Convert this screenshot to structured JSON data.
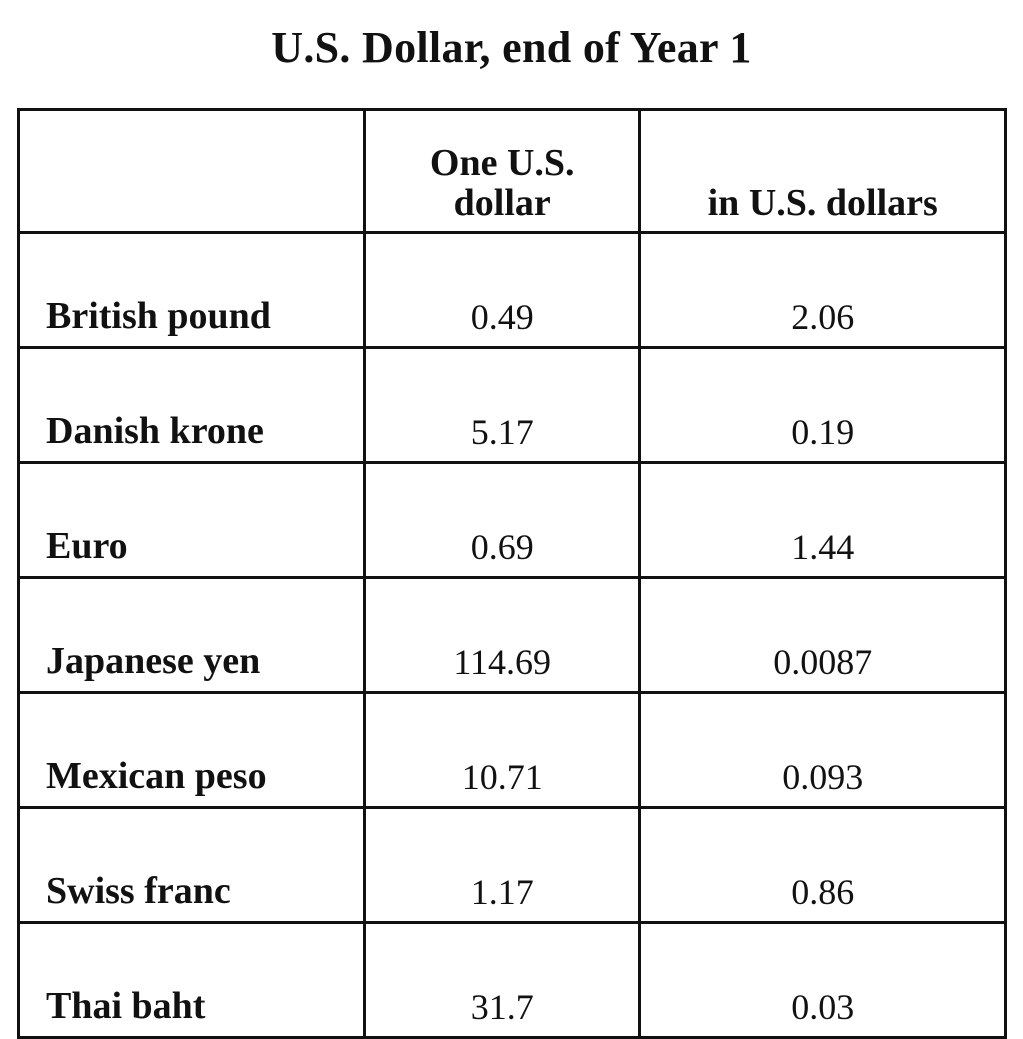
{
  "title": "U.S. Dollar, end of Year 1",
  "chart_data": {
    "type": "table",
    "title": "U.S. Dollar, end of Year 1",
    "columns": [
      "",
      "One U.S. dollar",
      "in U.S. dollars"
    ],
    "rows": [
      {
        "currency": "British pound",
        "per_usd": "0.49",
        "in_usd": "2.06"
      },
      {
        "currency": "Danish krone",
        "per_usd": "5.17",
        "in_usd": "0.19"
      },
      {
        "currency": "Euro",
        "per_usd": "0.69",
        "in_usd": "1.44"
      },
      {
        "currency": "Japanese yen",
        "per_usd": "114.69",
        "in_usd": "0.0087"
      },
      {
        "currency": "Mexican peso",
        "per_usd": "10.71",
        "in_usd": "0.093"
      },
      {
        "currency": "Swiss franc",
        "per_usd": "1.17",
        "in_usd": "0.86"
      },
      {
        "currency": "Thai baht",
        "per_usd": "31.7",
        "in_usd": "0.03"
      }
    ]
  }
}
